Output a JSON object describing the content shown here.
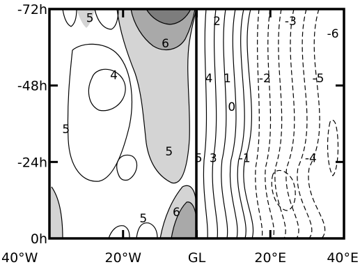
{
  "chart_data": {
    "type": "contour",
    "title": "",
    "xlabel": "",
    "ylabel": "",
    "x_ticks": [
      {
        "label": "40°W",
        "value": -40
      },
      {
        "label": "20°W",
        "value": -20
      },
      {
        "label": "GL",
        "value": 0
      },
      {
        "label": "20°E",
        "value": 20
      },
      {
        "label": "40°E",
        "value": 40
      }
    ],
    "y_ticks": [
      {
        "label": "-72h",
        "value": -72
      },
      {
        "label": "-48h",
        "value": -48
      },
      {
        "label": "-24h",
        "value": -24
      },
      {
        "label": "0h",
        "value": 0
      }
    ],
    "xlim": [
      -40,
      40
    ],
    "ylim": [
      -72,
      0
    ],
    "divider_x": 0,
    "shading": {
      "levels": [
        5,
        6,
        7
      ],
      "colors": [
        "#ffffff",
        "#d4d4d4",
        "#a9a9a9",
        "#7d7d7d"
      ]
    },
    "line_styles": {
      "positive": "solid",
      "negative": "dashed"
    },
    "contour_labels": [
      {
        "text": "5",
        "x": -29,
        "y": -68
      },
      {
        "text": "6",
        "x": -8.5,
        "y": -60
      },
      {
        "text": "4",
        "x": -22.5,
        "y": -50
      },
      {
        "text": "5",
        "x": -35.5,
        "y": -33
      },
      {
        "text": "5",
        "x": -7.5,
        "y": -26
      },
      {
        "text": "5",
        "x": -14.5,
        "y": -5
      },
      {
        "text": "6",
        "x": -5.5,
        "y": -7
      },
      {
        "text": "2",
        "x": 5.5,
        "y": -67
      },
      {
        "text": "-3",
        "x": 25.5,
        "y": -67
      },
      {
        "text": "-6",
        "x": 37,
        "y": -63
      },
      {
        "text": "4",
        "x": 3.3,
        "y": -49
      },
      {
        "text": "1",
        "x": 8.3,
        "y": -49
      },
      {
        "text": "-2",
        "x": 18.5,
        "y": -49
      },
      {
        "text": "-5",
        "x": 33,
        "y": -49
      },
      {
        "text": "0",
        "x": 9.5,
        "y": -40
      },
      {
        "text": "5",
        "x": 0.5,
        "y": -24
      },
      {
        "text": "3",
        "x": 4.5,
        "y": -24
      },
      {
        "text": "-1",
        "x": 13,
        "y": -24
      },
      {
        "text": "-4",
        "x": 31,
        "y": -24
      }
    ]
  }
}
